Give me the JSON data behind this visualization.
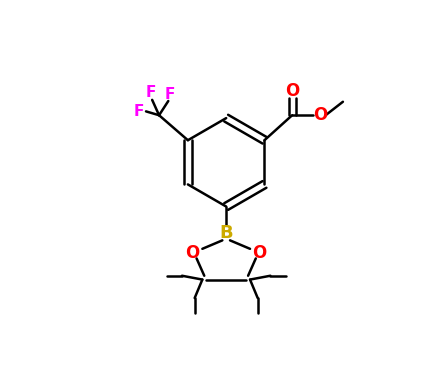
{
  "background_color": "#ffffff",
  "bond_color": "#000000",
  "atom_colors": {
    "F": "#ff00ff",
    "O": "#ff0000",
    "B": "#ccaa00",
    "C": "#000000"
  },
  "figsize": [
    4.37,
    3.9
  ],
  "dpi": 100
}
